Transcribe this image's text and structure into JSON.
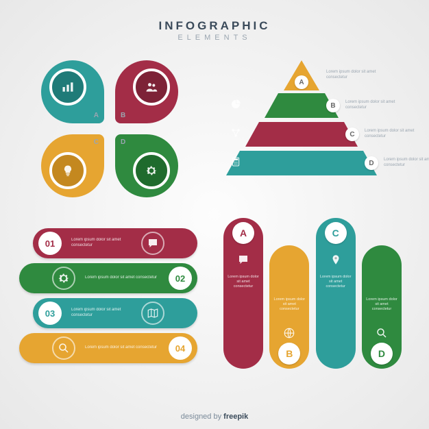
{
  "header": {
    "title": "INFOGRAPHIC",
    "subtitle": "ELEMENTS"
  },
  "footer": {
    "prefix": "designed by ",
    "brand": "freepik"
  },
  "lorem": "Lorem ipsum dolor sit amet consectetur",
  "palette": {
    "teal": "#2e9e9b",
    "teal_d": "#1f7b78",
    "crimson": "#a32d47",
    "crimson_d": "#7d2237",
    "gold": "#e6a531",
    "gold_d": "#c4881f",
    "green": "#2f8a3f",
    "green_d": "#1f6b2d"
  },
  "petals": [
    {
      "label": "A",
      "fill": "teal",
      "inner": "teal_d",
      "icon": "bars"
    },
    {
      "label": "B",
      "fill": "crimson",
      "inner": "crimson_d",
      "icon": "users"
    },
    {
      "label": "C",
      "fill": "gold",
      "inner": "gold_d",
      "icon": "bulb"
    },
    {
      "label": "D",
      "fill": "green",
      "inner": "green_d",
      "icon": "gear"
    }
  ],
  "pyramid": [
    {
      "label": "A",
      "fill": "gold",
      "icon": "cursor"
    },
    {
      "label": "B",
      "fill": "green",
      "icon": "pie"
    },
    {
      "label": "C",
      "fill": "crimson",
      "icon": "network"
    },
    {
      "label": "D",
      "fill": "teal",
      "icon": "calc"
    }
  ],
  "pills": [
    {
      "num": "01",
      "fill": "crimson",
      "num_color": "crimson",
      "icon": "chat",
      "side": "l"
    },
    {
      "num": "02",
      "fill": "green",
      "num_color": "green",
      "icon": "gear",
      "side": "r"
    },
    {
      "num": "03",
      "fill": "teal",
      "num_color": "teal",
      "icon": "map",
      "side": "l"
    },
    {
      "num": "04",
      "fill": "gold",
      "num_color": "gold",
      "icon": "search",
      "side": "r"
    }
  ],
  "columns": [
    {
      "label": "A",
      "fill": "crimson",
      "icon": "chat",
      "h": "tall",
      "pos": "top"
    },
    {
      "label": "B",
      "fill": "gold",
      "icon": "globe",
      "h": "short",
      "pos": "bot"
    },
    {
      "label": "C",
      "fill": "teal",
      "icon": "pin",
      "h": "tall",
      "pos": "top"
    },
    {
      "label": "D",
      "fill": "green",
      "icon": "search",
      "h": "short",
      "pos": "bot"
    }
  ]
}
